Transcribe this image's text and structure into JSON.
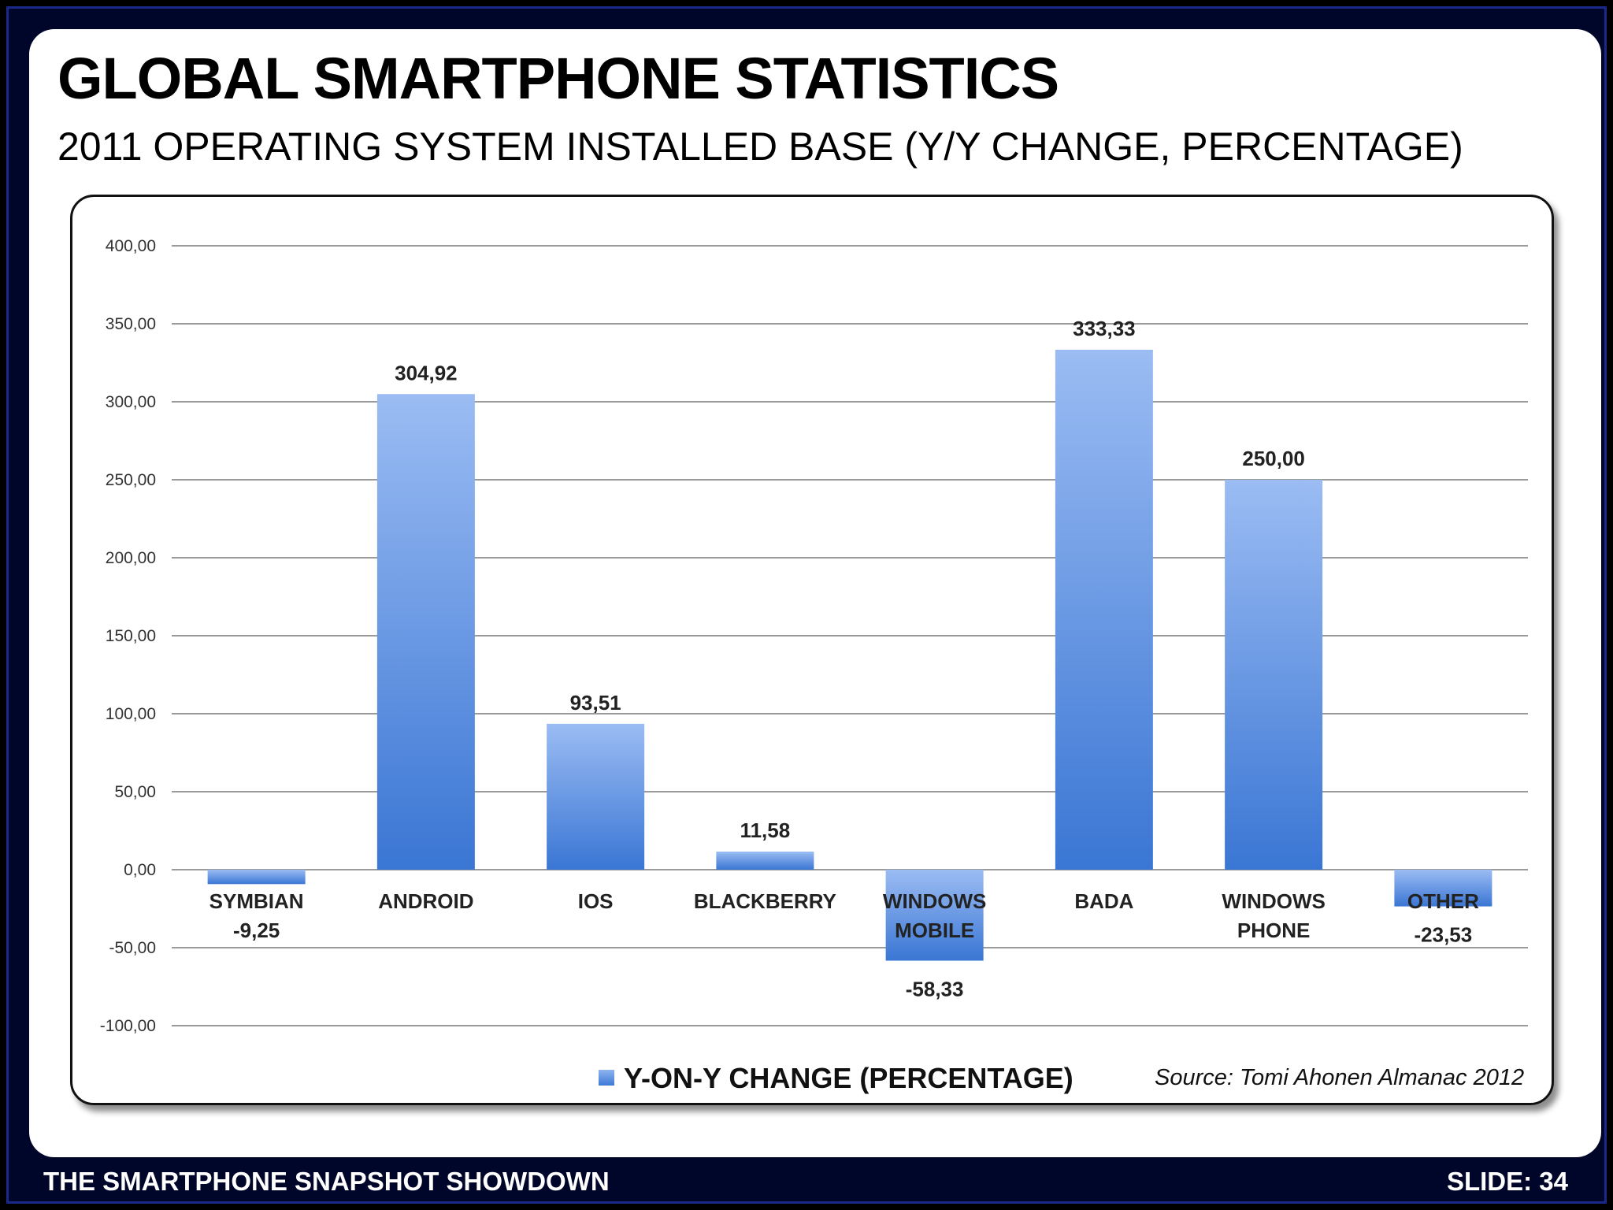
{
  "slide": {
    "title": "GLOBAL SMARTPHONE STATISTICS",
    "subtitle": "2011 OPERATING SYSTEM INSTALLED BASE (Y/Y CHANGE, PERCENTAGE)",
    "footer_left": "THE SMARTPHONE SNAPSHOT SHOWDOWN",
    "footer_right": "SLIDE: 34",
    "source": "Source: Tomi Ahonen Almanac 2012"
  },
  "colors": {
    "bar_top": "#9bbcf3",
    "bar_bottom": "#3a76d4",
    "gridline": "#9a9a9a",
    "background": "#00052a"
  },
  "chart_data": {
    "type": "bar",
    "categories": [
      [
        "SYMBIAN"
      ],
      [
        "ANDROID"
      ],
      [
        "IOS"
      ],
      [
        "BLACKBERRY"
      ],
      [
        "WINDOWS",
        "MOBILE"
      ],
      [
        "BADA"
      ],
      [
        "WINDOWS",
        "PHONE"
      ],
      [
        "OTHER"
      ]
    ],
    "series": [
      {
        "name": "Y-ON-Y CHANGE (PERCENTAGE)",
        "values": [
          -9.25,
          304.92,
          93.51,
          11.58,
          -58.33,
          333.33,
          250.0,
          -23.53
        ],
        "value_labels": [
          "-9,25",
          "304,92",
          "93,51",
          "11,58",
          "-58,33",
          "333,33",
          "250,00",
          "-23,53"
        ]
      }
    ],
    "ylim": [
      -100,
      400
    ],
    "yticks": [
      400,
      350,
      300,
      250,
      200,
      150,
      100,
      50,
      0,
      -50,
      -100
    ],
    "ytick_labels": [
      "400,00",
      "350,00",
      "300,00",
      "250,00",
      "200,00",
      "150,00",
      "100,00",
      "50,00",
      "0,00",
      "-50,00",
      "-100,00"
    ],
    "grid": true,
    "legend_position": "bottom"
  }
}
